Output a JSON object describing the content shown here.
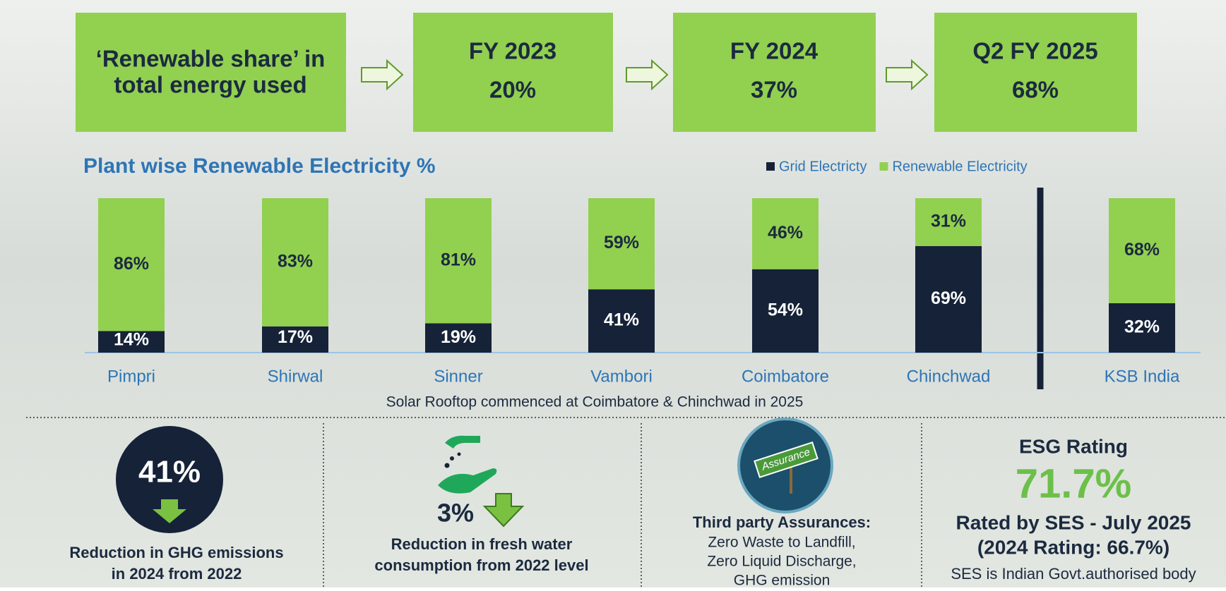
{
  "header": {
    "boxes": [
      {
        "lines": [
          "‘Renewable share’ in",
          "total energy used"
        ]
      },
      {
        "lines": [
          "FY 2023",
          "20%"
        ]
      },
      {
        "lines": [
          "FY 2024",
          "37%"
        ]
      },
      {
        "lines": [
          "Q2 FY 2025",
          "68%"
        ]
      }
    ]
  },
  "chart_data": {
    "type": "stacked_bar",
    "title": "Plant wise Renewable Electricity %",
    "categories": [
      "Pimpri",
      "Shirwal",
      "Sinner",
      "Vambori",
      "Coimbatore",
      "Chinchwad",
      "KSB India"
    ],
    "series": [
      {
        "name": "Grid Electricty",
        "color": "#152238",
        "values": [
          14,
          17,
          19,
          41,
          54,
          69,
          32
        ],
        "value_labels": [
          "14%",
          "17%",
          "19%",
          "41%",
          "54%",
          "69%",
          "32%"
        ]
      },
      {
        "name": "Renewable Electricity",
        "color": "#92d050",
        "values": [
          86,
          83,
          81,
          59,
          46,
          31,
          68
        ],
        "value_labels": [
          "86%",
          "83%",
          "81%",
          "59%",
          "46%",
          "31%",
          "68%"
        ]
      }
    ],
    "ylim": [
      0,
      100
    ],
    "note": "Solar Rooftop commenced at Coimbatore & Chinchwad in 2025"
  },
  "footer": {
    "ghg": {
      "value": "41%",
      "lines": [
        "Reduction in GHG emissions",
        "in 2024 from 2022"
      ]
    },
    "water": {
      "value": "3%",
      "lines": [
        "Reduction in fresh water",
        "consumption from 2022 level"
      ]
    },
    "assurance": {
      "badge": "Assurance",
      "title": "Third party Assurances:",
      "lines": [
        "Zero Waste to Landfill,",
        "Zero Liquid Discharge,",
        "GHG emission"
      ]
    },
    "esg": {
      "title": "ESG Rating",
      "value": "71.7%",
      "lines": [
        "Rated by SES - July 2025",
        "(2024 Rating: 66.7%)"
      ],
      "note": "SES is Indian Govt.authorised body"
    }
  }
}
